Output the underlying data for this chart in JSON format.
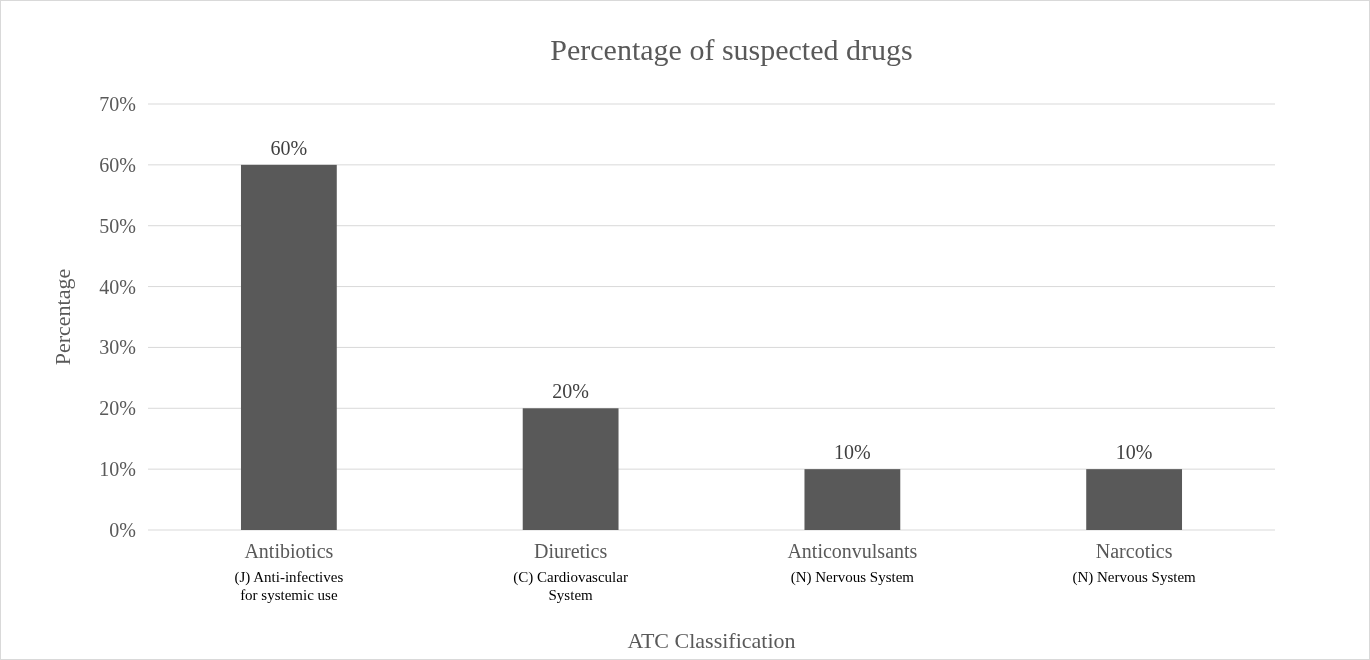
{
  "chart_data": {
    "type": "bar",
    "title": "Percentage of suspected drugs",
    "xlabel": "ATC Classification",
    "ylabel": "Percentage",
    "categories": [
      "Antibiotics",
      "Diuretics",
      "Anticonvulsants",
      "Narcotics"
    ],
    "values": [
      60,
      20,
      10,
      10
    ],
    "value_labels": [
      "60%",
      "20%",
      "10%",
      "10%"
    ],
    "color": "#595959",
    "ylim": [
      0,
      70
    ],
    "yticks": [
      {
        "value": 0,
        "label": "0%"
      },
      {
        "value": 10,
        "label": "10%"
      },
      {
        "value": 20,
        "label": "20%"
      },
      {
        "value": 30,
        "label": "30%"
      },
      {
        "value": 40,
        "label": "40%"
      },
      {
        "value": 50,
        "label": "50%"
      },
      {
        "value": 60,
        "label": "60%"
      },
      {
        "value": 70,
        "label": "70%"
      }
    ],
    "grid": "y",
    "annotations": [
      "(J) Anti-infectives for systemic use",
      "(C) Cardiovascular System",
      "(N) Nervous System",
      "(N) Nervous System"
    ]
  }
}
